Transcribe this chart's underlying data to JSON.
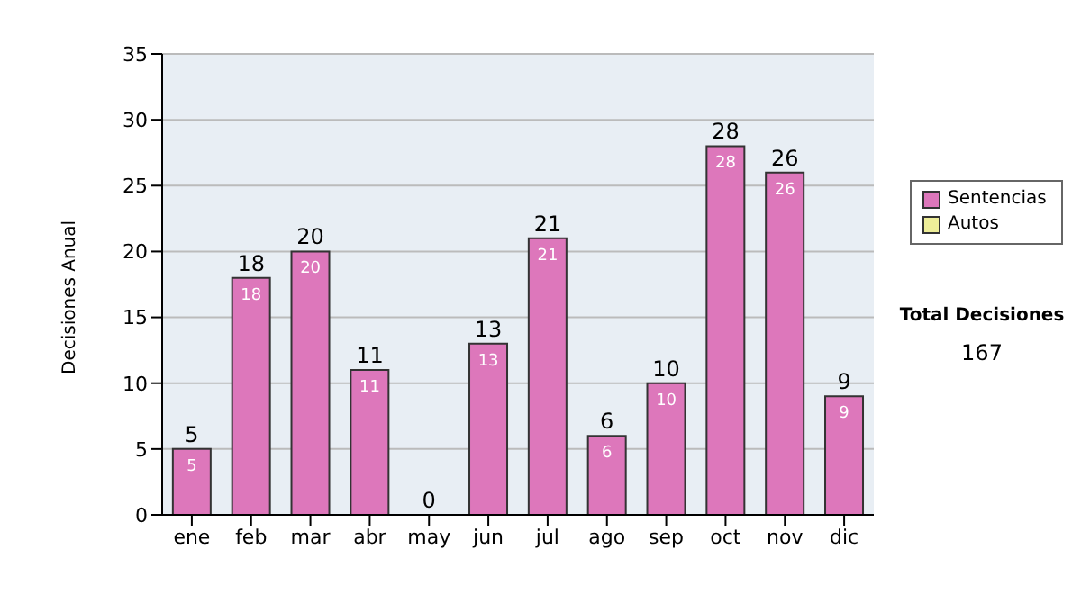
{
  "chart_data": {
    "type": "bar",
    "ylabel": "Decisiones Anual",
    "categories": [
      "ene",
      "feb",
      "mar",
      "abr",
      "may",
      "jun",
      "jul",
      "ago",
      "sep",
      "oct",
      "nov",
      "dic"
    ],
    "series": [
      {
        "name": "Sentencias",
        "color": "#dd77bb",
        "values": [
          5,
          18,
          20,
          11,
          0,
          13,
          21,
          6,
          10,
          28,
          26,
          9
        ],
        "value_labels": [
          "5",
          "18",
          "20",
          "11",
          null,
          "13",
          "21",
          "6",
          "10",
          "28",
          "26",
          "9"
        ]
      },
      {
        "name": "Autos",
        "color": "#eeee99",
        "values": [
          0,
          0,
          0,
          0,
          0,
          0,
          0,
          0,
          0,
          0,
          0,
          0
        ]
      }
    ],
    "stacked": true,
    "totals": [
      "5",
      "18",
      "20",
      "11",
      "0",
      "13",
      "21",
      "6",
      "10",
      "28",
      "26",
      "9"
    ],
    "ylim": [
      0,
      35
    ],
    "yticks": [
      0,
      5,
      10,
      15,
      20,
      25,
      30,
      35
    ],
    "grid": "y",
    "legend": "right",
    "annotations": [
      "Total Decisiones",
      "167"
    ]
  }
}
